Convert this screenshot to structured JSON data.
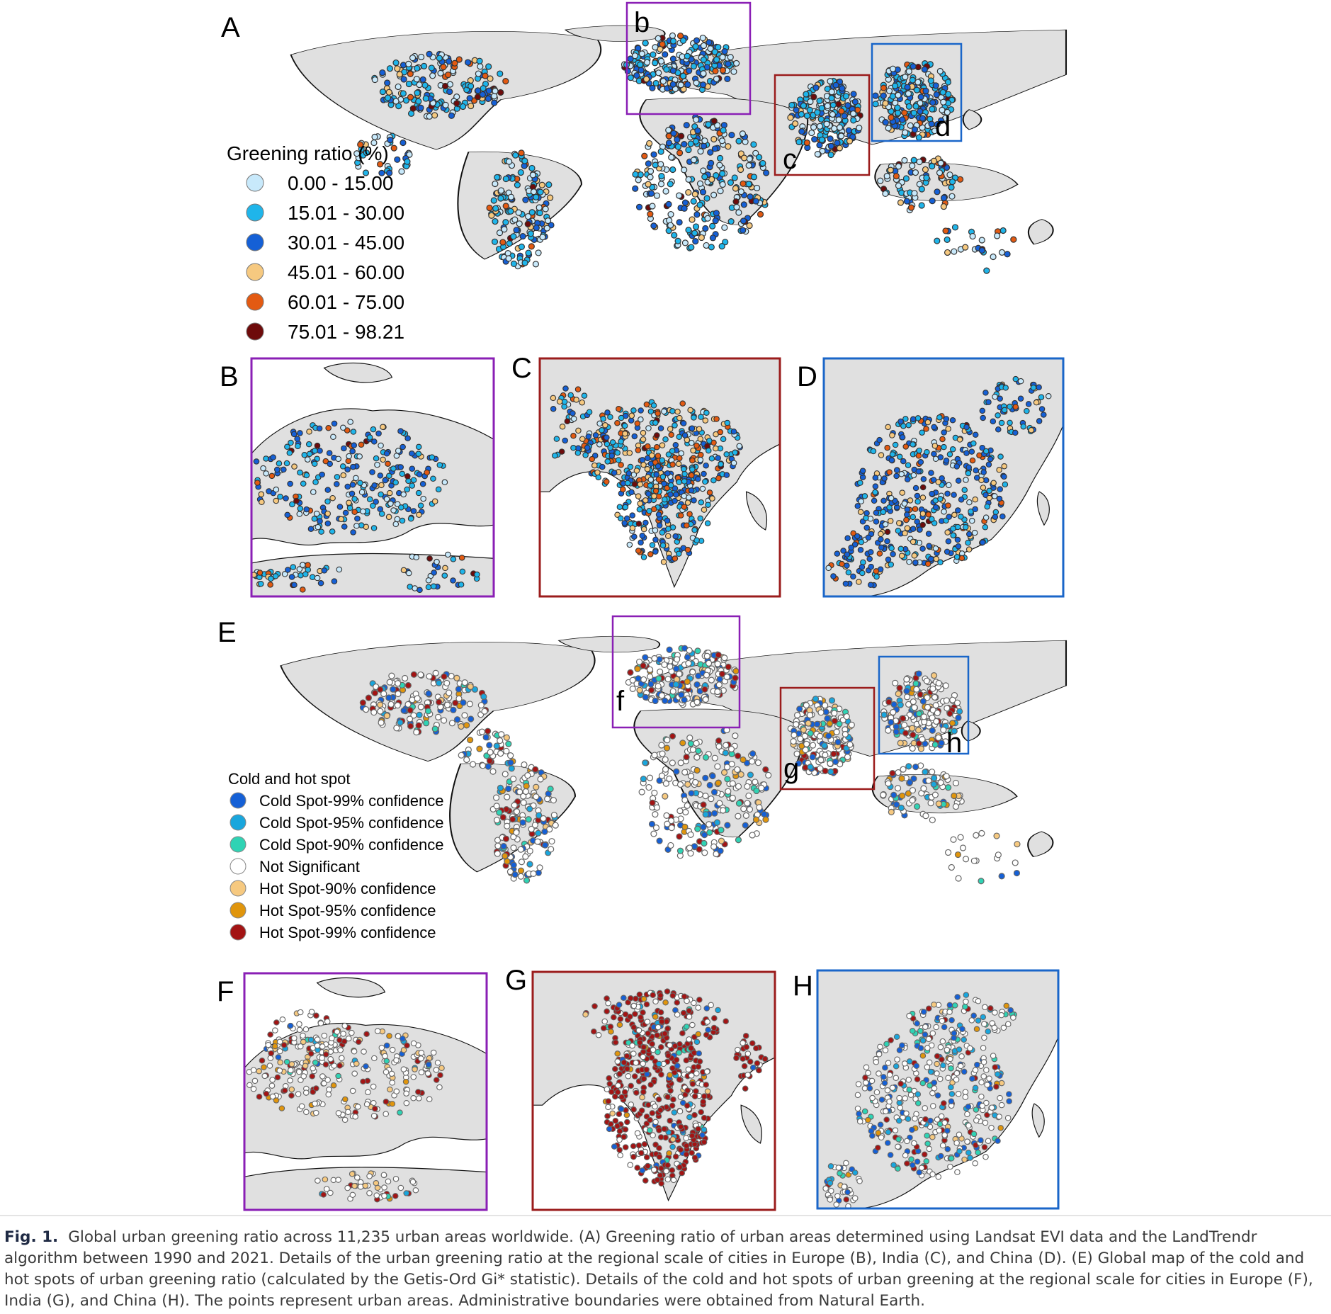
{
  "panel_labels": {
    "A": "A",
    "B": "B",
    "C": "C",
    "D": "D",
    "E": "E",
    "F": "F",
    "G": "G",
    "H": "H",
    "b": "b",
    "c": "c",
    "d": "d",
    "f": "f",
    "g": "g",
    "h": "h"
  },
  "legend_greening": {
    "title": "Greening ratio (%)",
    "items": [
      {
        "label": "0.00 - 15.00",
        "color": "#c8e9fb"
      },
      {
        "label": "15.01 - 30.00",
        "color": "#1fb5ea"
      },
      {
        "label": "30.01 - 45.00",
        "color": "#1560d6"
      },
      {
        "label": "45.01 - 60.00",
        "color": "#f6c980"
      },
      {
        "label": "60.01 - 75.00",
        "color": "#e35a12"
      },
      {
        "label": "75.01 - 98.21",
        "color": "#6e0b0b"
      }
    ]
  },
  "legend_hotspot": {
    "title": "Cold and hot spot",
    "items": [
      {
        "label": "Cold Spot-99% confidence",
        "color": "#1560d6"
      },
      {
        "label": "Cold Spot-95% confidence",
        "color": "#19a6dd"
      },
      {
        "label": "Cold Spot-90% confidence",
        "color": "#2fd3b4"
      },
      {
        "label": "Not Significant",
        "color": "#ffffff"
      },
      {
        "label": "Hot Spot-90% confidence",
        "color": "#f6c980"
      },
      {
        "label": "Hot Spot-95% confidence",
        "color": "#e0950c"
      },
      {
        "label": "Hot Spot-99% confidence",
        "color": "#a31414"
      }
    ]
  },
  "box_colors": {
    "europe": "#8a1fb5",
    "india": "#9b1c1c",
    "china": "#1a66c9"
  },
  "land_color": "#e0e0e0",
  "caption": {
    "lead": "Fig. 1.",
    "text": "Global urban greening ratio across 11,235 urban areas worldwide. (A) Greening ratio of urban areas determined using Landsat EVI data and the LandTrendr algorithm between 1990 and 2021. Details of the urban greening ratio at the regional scale of cities in Europe (B), India (C), and China (D). (E) Global map of the cold and hot spots of urban greening ratio (calculated by the Getis-Ord Gi* statistic). Details of the cold and hot spots of urban greening at the regional scale for cities in Europe (F), India (G), and China (H). The points represent urban areas. Administrative boundaries were obtained from Natural Earth."
  }
}
